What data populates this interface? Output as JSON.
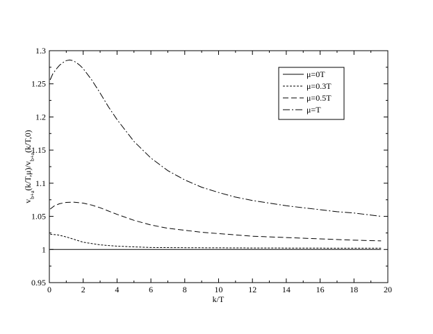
{
  "chart_data": {
    "type": "line",
    "title": "",
    "xlabel": "k/T",
    "ylabel": {
      "parts": [
        {
          "text": "v",
          "baseline": "normal"
        },
        {
          "text": "b+a",
          "baseline": "sub"
        },
        {
          "text": "(k/T,μ)/v",
          "baseline": "normal"
        },
        {
          "text": "b+a",
          "baseline": "sub"
        },
        {
          "text": "(k/T,0)",
          "baseline": "normal"
        }
      ]
    },
    "xlim": [
      0,
      20
    ],
    "ylim": [
      0.95,
      1.3
    ],
    "xticks": [
      0,
      2,
      4,
      6,
      8,
      10,
      12,
      14,
      16,
      18,
      20
    ],
    "xtick_labels": [
      "0",
      "2",
      "4",
      "6",
      "8",
      "10",
      "12",
      "14",
      "16",
      "18",
      "20"
    ],
    "yticks": [
      0.95,
      1.0,
      1.05,
      1.1,
      1.15,
      1.2,
      1.25,
      1.3
    ],
    "ytick_labels": [
      "0.95",
      "1",
      "1.05",
      "1.1",
      "1.15",
      "1.2",
      "1.25",
      "1.3"
    ],
    "grid": false,
    "legend_position": "top-right",
    "series": [
      {
        "name": "μ=0T",
        "dash": "",
        "x": [
          0.05,
          2,
          4,
          6,
          8,
          10,
          12,
          14,
          16,
          18,
          19.6
        ],
        "y": [
          1.0,
          1.0,
          1.0,
          1.0,
          1.0,
          1.0,
          1.0,
          1.0,
          1.0,
          1.0,
          1.0
        ]
      },
      {
        "name": "μ=0.3T",
        "dash": "3,2",
        "x": [
          0.05,
          0.5,
          1,
          1.5,
          2,
          3,
          4,
          5,
          6,
          8,
          10,
          12,
          14,
          16,
          18,
          19.6
        ],
        "y": [
          1.023,
          1.022,
          1.019,
          1.015,
          1.011,
          1.007,
          1.005,
          1.004,
          1.003,
          1.0027,
          1.0025,
          1.0023,
          1.0022,
          1.0021,
          1.002,
          1.002
        ]
      },
      {
        "name": "μ=0.5T",
        "dash": "8,4",
        "x": [
          0.05,
          0.3,
          0.6,
          1,
          1.4,
          2,
          2.5,
          3,
          4,
          5,
          6,
          7,
          8,
          9,
          10,
          12,
          14,
          16,
          18,
          19.6
        ],
        "y": [
          1.061,
          1.066,
          1.069,
          1.071,
          1.0715,
          1.07,
          1.067,
          1.063,
          1.053,
          1.044,
          1.037,
          1.032,
          1.029,
          1.026,
          1.024,
          1.02,
          1.018,
          1.016,
          1.014,
          1.013
        ]
      },
      {
        "name": "μ=T",
        "dash": "10,3,2,3",
        "x": [
          0.05,
          0.2,
          0.4,
          0.6,
          0.8,
          1,
          1.2,
          1.4,
          1.6,
          1.8,
          2,
          2.5,
          3,
          3.5,
          4,
          5,
          6,
          7,
          8,
          9,
          10,
          11,
          12,
          13,
          14,
          15,
          16,
          17,
          18,
          19,
          19.6
        ],
        "y": [
          1.256,
          1.265,
          1.272,
          1.278,
          1.282,
          1.285,
          1.286,
          1.285,
          1.282,
          1.278,
          1.273,
          1.256,
          1.236,
          1.215,
          1.196,
          1.163,
          1.138,
          1.119,
          1.105,
          1.094,
          1.086,
          1.079,
          1.074,
          1.07,
          1.066,
          1.063,
          1.06,
          1.057,
          1.055,
          1.052,
          1.05
        ]
      }
    ]
  }
}
